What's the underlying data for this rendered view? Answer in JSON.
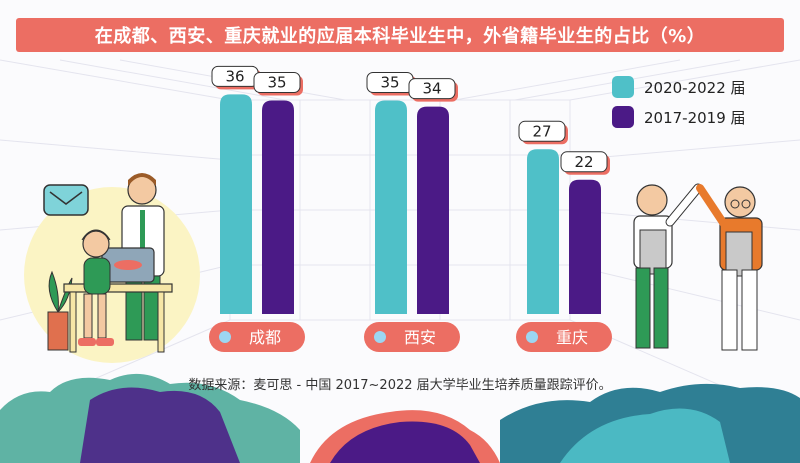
{
  "title": "在成都、西安、重庆就业的应届本科毕业生中，外省籍毕业生的占比（%）",
  "source": "数据来源：麦可思 - 中国 2017~2022 届大学毕业生培养质量跟踪评价。",
  "colors": {
    "title_bg": "#ec6e63",
    "series_recent": "#4fc0c8",
    "series_earlier": "#4b1a86",
    "category_pill": "#ec6e63",
    "category_dot": "#9cd6f2"
  },
  "chart_data": {
    "type": "bar",
    "categories": [
      "成都",
      "西安",
      "重庆"
    ],
    "series": [
      {
        "name": "2020-2022 届",
        "values": [
          36,
          35,
          27
        ]
      },
      {
        "name": "2017-2019 届",
        "values": [
          35,
          34,
          22
        ]
      }
    ],
    "ylim": [
      0,
      40
    ],
    "grid": false,
    "legend": "top-right",
    "data_labels": true
  }
}
